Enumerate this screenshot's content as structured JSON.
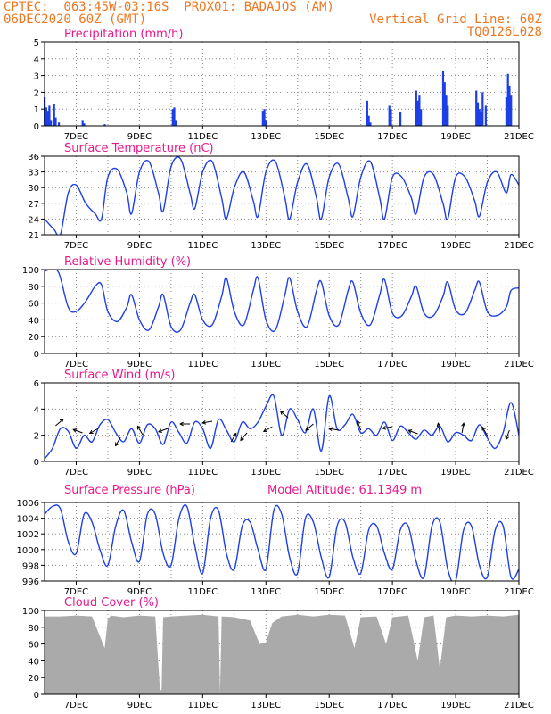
{
  "header": {
    "line1_left": "CPTEC:  063:45W-03:16S  PROX01: BADAJOS (AM)",
    "line2_left": "06DEC2020 60Z (GMT)",
    "line2_right": "Vertical Grid Line: 60Z",
    "line3_right": "TQ0126L028"
  },
  "colors": {
    "header": "#ee7722",
    "title": "#e8198b",
    "line": "#1f3fe6",
    "cloud": "#aaaaaa"
  },
  "chart_data": [
    {
      "type": "bar",
      "title": "Precipitation (mm/h)",
      "ylim": [
        0,
        5
      ],
      "yticks": [
        0,
        1,
        2,
        3,
        4,
        5
      ],
      "x_tick_labels": [
        "7DEC",
        "9DEC",
        "11DEC",
        "13DEC",
        "15DEC",
        "17DEC",
        "19DEC",
        "21DEC"
      ],
      "x": [
        6.0,
        6.05,
        6.1,
        6.15,
        6.2,
        6.3,
        6.35,
        6.45,
        7.2,
        7.25,
        7.9,
        10.05,
        10.1,
        10.15,
        12.9,
        12.95,
        13.0,
        16.2,
        16.25,
        16.3,
        16.9,
        16.95,
        17.25,
        17.75,
        17.8,
        17.85,
        17.9,
        18.6,
        18.65,
        18.7,
        18.75,
        19.65,
        19.7,
        19.75,
        19.8,
        19.85,
        19.95,
        20.6,
        20.65,
        20.7,
        20.75
      ],
      "values": [
        1.7,
        1.1,
        0.9,
        1.2,
        0.3,
        1.3,
        0.5,
        0.2,
        0.3,
        0.15,
        0.1,
        1.0,
        1.1,
        0.3,
        0.9,
        1.0,
        0.3,
        1.5,
        0.6,
        0.2,
        1.2,
        1.0,
        0.8,
        2.1,
        1.5,
        1.8,
        1.0,
        3.3,
        2.6,
        1.8,
        1.2,
        2.1,
        1.4,
        1.0,
        0.8,
        2.0,
        1.2,
        1.7,
        3.1,
        2.4,
        1.8
      ]
    },
    {
      "type": "line",
      "title": "Surface Temperature (nC)",
      "ylim": [
        21,
        36
      ],
      "yticks": [
        21,
        24,
        27,
        30,
        33,
        36
      ],
      "x_tick_labels": [
        "7DEC",
        "9DEC",
        "11DEC",
        "13DEC",
        "15DEC",
        "17DEC",
        "19DEC",
        "21DEC"
      ],
      "x": [
        6,
        6.3,
        6.5,
        6.75,
        7.0,
        7.3,
        7.6,
        7.8,
        8.0,
        8.3,
        8.6,
        8.75,
        9.0,
        9.3,
        9.6,
        9.75,
        10.0,
        10.3,
        10.6,
        10.75,
        11.0,
        11.3,
        11.6,
        11.75,
        12.0,
        12.3,
        12.6,
        12.75,
        13.0,
        13.3,
        13.6,
        13.75,
        14.0,
        14.3,
        14.6,
        14.75,
        15.0,
        15.3,
        15.6,
        15.75,
        16.0,
        16.3,
        16.6,
        16.75,
        17.0,
        17.3,
        17.6,
        17.75,
        18.0,
        18.3,
        18.6,
        18.75,
        19.0,
        19.3,
        19.6,
        19.75,
        20.0,
        20.3,
        20.6,
        20.75,
        21.0
      ],
      "values": [
        24.0,
        22.0,
        21.0,
        29.0,
        30.5,
        27.0,
        25.0,
        24.0,
        32.0,
        33.5,
        29.0,
        25.0,
        33.0,
        35.0,
        29.0,
        25.5,
        34.0,
        35.5,
        29.0,
        26.0,
        33.0,
        35.0,
        28.0,
        24.0,
        30.0,
        33.0,
        27.5,
        24.5,
        33.0,
        35.0,
        28.0,
        24.0,
        31.0,
        34.5,
        28.0,
        24.0,
        32.0,
        34.5,
        28.0,
        24.5,
        32.0,
        35.0,
        28.0,
        24.0,
        32.0,
        32.0,
        28.0,
        25.0,
        32.0,
        32.5,
        27.0,
        24.0,
        32.0,
        32.0,
        27.5,
        24.5,
        31.0,
        33.0,
        29.0,
        32.5,
        30.5
      ]
    },
    {
      "type": "line",
      "title": "Relative Humidity (%)",
      "ylim": [
        0,
        100
      ],
      "yticks": [
        0,
        20,
        40,
        60,
        80,
        100
      ],
      "x_tick_labels": [
        "7DEC",
        "9DEC",
        "11DEC",
        "13DEC",
        "15DEC",
        "17DEC",
        "19DEC",
        "21DEC"
      ],
      "x": [
        6,
        6.2,
        6.45,
        6.75,
        7.0,
        7.3,
        7.6,
        7.8,
        8.0,
        8.3,
        8.6,
        8.75,
        9.0,
        9.3,
        9.6,
        9.75,
        10.0,
        10.3,
        10.6,
        10.75,
        11.0,
        11.3,
        11.6,
        11.75,
        12.0,
        12.3,
        12.6,
        12.75,
        13.0,
        13.3,
        13.6,
        13.75,
        14.0,
        14.3,
        14.6,
        14.75,
        15.0,
        15.3,
        15.6,
        15.75,
        16.0,
        16.3,
        16.6,
        16.75,
        17.0,
        17.3,
        17.6,
        17.75,
        18.0,
        18.3,
        18.6,
        18.75,
        19.0,
        19.3,
        19.6,
        19.75,
        20.0,
        20.3,
        20.6,
        20.75,
        21.0
      ],
      "values": [
        98,
        100,
        96,
        55,
        50,
        62,
        80,
        82,
        50,
        38,
        55,
        70,
        40,
        28,
        55,
        70,
        32,
        28,
        60,
        70,
        40,
        34,
        68,
        90,
        50,
        34,
        75,
        90,
        40,
        28,
        70,
        90,
        50,
        32,
        75,
        85,
        45,
        34,
        75,
        85,
        48,
        34,
        70,
        88,
        48,
        45,
        68,
        80,
        48,
        45,
        68,
        85,
        52,
        48,
        75,
        85,
        50,
        45,
        55,
        75,
        78
      ]
    },
    {
      "type": "line",
      "title": "Surface Wind (m/s)",
      "ylim": [
        0,
        6
      ],
      "yticks": [
        0,
        2,
        4,
        6
      ],
      "x_tick_labels": [
        "7DEC",
        "9DEC",
        "11DEC",
        "13DEC",
        "15DEC",
        "17DEC",
        "19DEC",
        "21DEC"
      ],
      "x": [
        6,
        6.25,
        6.5,
        6.75,
        7.0,
        7.25,
        7.5,
        7.75,
        8.0,
        8.25,
        8.5,
        8.75,
        9.0,
        9.25,
        9.5,
        9.75,
        10.0,
        10.25,
        10.5,
        10.75,
        11.0,
        11.25,
        11.5,
        11.75,
        12.0,
        12.25,
        12.5,
        12.75,
        13.0,
        13.25,
        13.5,
        13.75,
        14.0,
        14.25,
        14.5,
        14.75,
        15.0,
        15.25,
        15.5,
        15.75,
        16.0,
        16.25,
        16.5,
        16.75,
        17.0,
        17.25,
        17.5,
        17.75,
        18.0,
        18.25,
        18.5,
        18.75,
        19.0,
        19.25,
        19.5,
        19.75,
        20.0,
        20.25,
        20.5,
        20.75,
        21.0
      ],
      "values": [
        0.2,
        1.0,
        2.5,
        2.3,
        1.0,
        2.0,
        1.5,
        2.8,
        3.2,
        2.2,
        1.5,
        2.5,
        1.4,
        2.8,
        2.5,
        1.3,
        3.0,
        2.2,
        1.4,
        3.0,
        2.5,
        1.0,
        3.2,
        2.4,
        1.5,
        3.0,
        2.5,
        3.0,
        4.2,
        5.0,
        2.0,
        4.0,
        3.2,
        2.2,
        4.0,
        0.8,
        5.0,
        2.5,
        2.8,
        3.6,
        2.2,
        2.5,
        2.0,
        3.0,
        1.6,
        2.7,
        2.2,
        1.7,
        2.4,
        2.0,
        2.7,
        1.5,
        2.2,
        2.0,
        1.6,
        2.8,
        1.8,
        1.0,
        2.2,
        4.5,
        2.0
      ]
    },
    {
      "type": "line",
      "title": "Surface Pressure (hPa)",
      "subtitle": "Model Altitude: 61.1349 m",
      "ylim": [
        996,
        1006
      ],
      "yticks": [
        996,
        998,
        1000,
        1002,
        1004,
        1006
      ],
      "x_tick_labels": [
        "7DEC",
        "9DEC",
        "11DEC",
        "13DEC",
        "15DEC",
        "17DEC",
        "19DEC",
        "21DEC"
      ],
      "x": [
        6,
        6.25,
        6.5,
        6.75,
        7.0,
        7.25,
        7.5,
        7.75,
        8.0,
        8.25,
        8.5,
        8.75,
        9.0,
        9.25,
        9.5,
        9.75,
        10.0,
        10.25,
        10.5,
        10.75,
        11.0,
        11.25,
        11.5,
        11.75,
        12.0,
        12.25,
        12.5,
        12.75,
        13.0,
        13.25,
        13.5,
        13.75,
        14.0,
        14.25,
        14.5,
        14.75,
        15.0,
        15.25,
        15.5,
        15.75,
        16.0,
        16.25,
        16.5,
        16.75,
        17.0,
        17.25,
        17.5,
        17.75,
        18.0,
        18.25,
        18.5,
        18.75,
        19.0,
        19.25,
        19.5,
        19.75,
        20.0,
        20.25,
        20.5,
        20.75,
        21.0
      ],
      "values": [
        1004.5,
        1005.5,
        1005.2,
        1001.0,
        999.5,
        1004.5,
        1003.5,
        1000.0,
        998.0,
        1003.0,
        1005.0,
        1001.0,
        998.5,
        1004.5,
        1004.5,
        999.5,
        998.0,
        1004.0,
        1005.5,
        1000.5,
        997.0,
        1004.0,
        1005.0,
        999.5,
        997.5,
        1003.0,
        1003.5,
        1000.0,
        997.5,
        1005.0,
        1004.5,
        999.0,
        997.0,
        1004.0,
        1003.5,
        999.0,
        996.5,
        1003.0,
        1003.5,
        999.0,
        997.0,
        1002.5,
        1003.0,
        999.5,
        997.5,
        1002.5,
        1003.0,
        998.5,
        996.5,
        1003.0,
        1003.5,
        997.5,
        996.0,
        1002.5,
        1003.0,
        998.0,
        996.5,
        1002.5,
        1003.0,
        996.5,
        997.5
      ]
    },
    {
      "type": "area",
      "title": "Cloud Cover (%)",
      "ylim": [
        0,
        100
      ],
      "yticks": [
        0,
        20,
        40,
        60,
        80,
        100
      ],
      "x_tick_labels": [
        "7DEC",
        "9DEC",
        "11DEC",
        "13DEC",
        "15DEC",
        "17DEC",
        "19DEC",
        "21DEC"
      ],
      "x": [
        6,
        6.5,
        7.0,
        7.5,
        7.9,
        8.0,
        8.1,
        8.5,
        9.0,
        9.5,
        9.65,
        9.7,
        9.75,
        10.0,
        10.5,
        11.0,
        11.5,
        11.55,
        11.6,
        12.0,
        12.5,
        12.8,
        13.0,
        13.2,
        13.5,
        14.0,
        14.5,
        15.0,
        15.5,
        15.8,
        16.0,
        16.5,
        16.8,
        17.0,
        17.5,
        17.8,
        18.0,
        18.3,
        18.5,
        18.7,
        19.0,
        19.5,
        20.0,
        20.5,
        21.0
      ],
      "values": [
        93,
        93,
        94,
        93,
        55,
        90,
        94,
        92,
        94,
        93,
        5,
        5,
        92,
        93,
        94,
        95,
        93,
        2,
        93,
        92,
        88,
        60,
        62,
        85,
        93,
        95,
        93,
        95,
        94,
        55,
        92,
        93,
        60,
        92,
        94,
        40,
        92,
        94,
        30,
        92,
        94,
        93,
        94,
        93,
        95
      ]
    }
  ]
}
